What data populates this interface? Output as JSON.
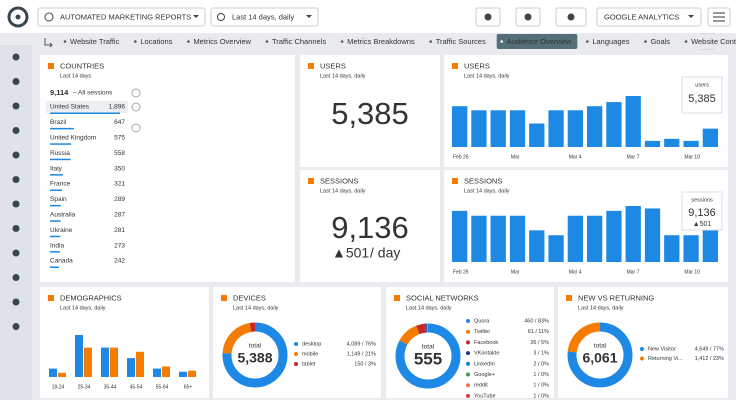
{
  "topbar": {
    "report": "AUTOMATED MARKETING REPORTS",
    "date_range": "Last 14 days, daily",
    "source": "GOOGLE ANALYTICS"
  },
  "tabs": {
    "items": [
      "Website Traffic",
      "Locations",
      "Metrics Overview",
      "Traffic Channels",
      "Metrics Breakdowns",
      "Traffic Sources",
      "Audience Overview",
      "Languages",
      "Goals",
      "Website Content"
    ],
    "active": 6
  },
  "widgets": {
    "countries": {
      "title": "COUNTRIES",
      "subtitle": "Last 14 days",
      "total": "9,114",
      "total_label": "– All sessions",
      "rows": [
        {
          "name": "United States",
          "value": 1896,
          "label": "1,896"
        },
        {
          "name": "Brazil",
          "value": 647,
          "label": "647"
        },
        {
          "name": "United Kingdom",
          "value": 575,
          "label": "575"
        },
        {
          "name": "Russia",
          "value": 558,
          "label": "558"
        },
        {
          "name": "Italy",
          "value": 350,
          "label": "350"
        },
        {
          "name": "France",
          "value": 321,
          "label": "321"
        },
        {
          "name": "Spain",
          "value": 289,
          "label": "289"
        },
        {
          "name": "Australia",
          "value": 287,
          "label": "287"
        },
        {
          "name": "Ukraine",
          "value": 281,
          "label": "281"
        },
        {
          "name": "India",
          "value": 273,
          "label": "273"
        },
        {
          "name": "Canada",
          "value": 242,
          "label": "242"
        }
      ]
    },
    "users": {
      "title": "USERS",
      "subtitle": "Last 14 days, daily",
      "value": "5,385"
    },
    "sessions": {
      "title": "SESSIONS",
      "subtitle": "Last 14 days, daily",
      "value": "9,136",
      "change": "▲501",
      "per": "/ day"
    },
    "users_chart": {
      "title": "USERS",
      "subtitle": "Last 14 days, daily",
      "legend_name": "users",
      "legend_value": "5,385",
      "categories": [
        "Feb 26",
        null,
        null,
        "Mar",
        null,
        null,
        "Mar 4",
        null,
        null,
        "Mar 7",
        null,
        null,
        "Mar 10",
        null
      ],
      "values": [
        40,
        36,
        36,
        36,
        23,
        36,
        36,
        40,
        44,
        50,
        6,
        8,
        6,
        18
      ],
      "color": "#1e88e5"
    },
    "sessions_chart": {
      "title": "SESSIONS",
      "subtitle": "Last 14 days, daily",
      "legend_name": "sessions",
      "legend_value": "9,136",
      "legend_change": "▲501",
      "categories": [
        "Feb 26",
        null,
        null,
        "Mar",
        null,
        null,
        "Mar 4",
        null,
        null,
        "Mar 7",
        null,
        null,
        "Mar 10",
        null
      ],
      "values": [
        42,
        38,
        38,
        38,
        26,
        22,
        38,
        38,
        42,
        46,
        44,
        22,
        22,
        28
      ],
      "color": "#1e88e5"
    },
    "demographics": {
      "title": "DEMOGRAPHICS",
      "subtitle": "Last 14 days, daily",
      "categories": [
        "18-24",
        "25-34",
        "35-44",
        "45-54",
        "55-64",
        "65+"
      ],
      "series": [
        {
          "color": "#1e88e5",
          "values": [
            8,
            40,
            28,
            18,
            8,
            5
          ]
        },
        {
          "color": "#f57c00",
          "values": [
            4,
            28,
            28,
            24,
            10,
            6
          ]
        }
      ]
    },
    "devices": {
      "title": "DEVICES",
      "subtitle": "Last 14 days, daily",
      "total_label": "total",
      "total": "5,388",
      "items": [
        {
          "name": "desktop",
          "value": 4089,
          "value_label": "4,089 / 76%",
          "color": "#1e88e5"
        },
        {
          "name": "mobile",
          "value": 1149,
          "value_label": "1,149 / 21%",
          "color": "#f57c00"
        },
        {
          "name": "tablet",
          "value": 150,
          "value_label": "150 / 3%",
          "color": "#c62828"
        }
      ]
    },
    "social": {
      "title": "SOCIAL NETWORKS",
      "subtitle": "Last 14 days, daily",
      "total_label": "total",
      "total": "555",
      "items": [
        {
          "name": "Quora",
          "value": 460,
          "value_label": "460 / 83%",
          "color": "#1e88e5"
        },
        {
          "name": "Twitter",
          "value": 61,
          "value_label": "61 / 11%",
          "color": "#f57c00"
        },
        {
          "name": "Facebook",
          "value": 26,
          "value_label": "26 / 5%",
          "color": "#c62828"
        },
        {
          "name": "VKontakte",
          "value": 3,
          "value_label": "3 / 1%",
          "color": "#283593"
        },
        {
          "name": "LinkedIn",
          "value": 2,
          "value_label": "2 / 0%",
          "color": "#0288d1"
        },
        {
          "name": "Google+",
          "value": 1,
          "value_label": "1 / 0%",
          "color": "#43a047"
        },
        {
          "name": "reddit",
          "value": 1,
          "value_label": "1 / 0%",
          "color": "#ff7043"
        },
        {
          "name": "YouTube",
          "value": 1,
          "value_label": "1 / 0%",
          "color": "#e53935"
        }
      ]
    },
    "new_vs_returning": {
      "title": "NEW VS RETURNING",
      "subtitle": "Last 14 days, daily",
      "total_label": "total",
      "total": "6,061",
      "items": [
        {
          "name": "New Visitor",
          "value": 4649,
          "value_label": "4,649 / 77%",
          "color": "#1e88e5"
        },
        {
          "name": "Returning Vi...",
          "value": 1412,
          "value_label": "1,412 / 23%",
          "color": "#f57c00"
        }
      ]
    }
  }
}
